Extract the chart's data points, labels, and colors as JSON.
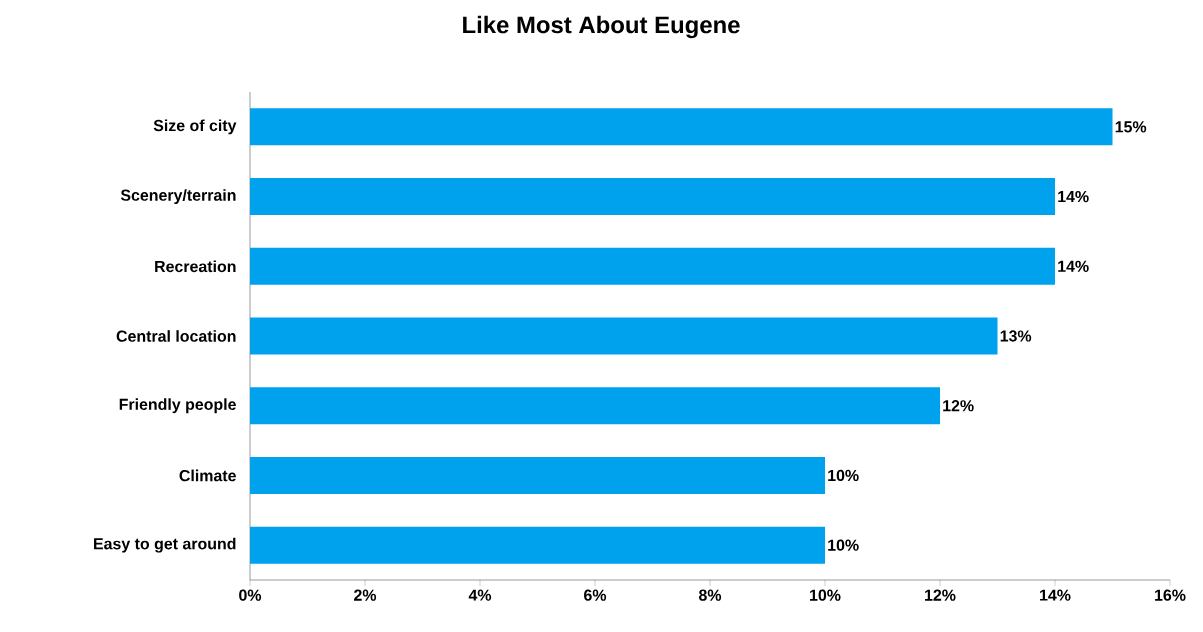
{
  "chart_data": {
    "type": "bar",
    "orientation": "horizontal",
    "title": "Like Most About Eugene",
    "categories": [
      "Size of city",
      "Scenery/terrain",
      "Recreation",
      "Central location",
      "Friendly people",
      "Climate",
      "Easy to get around"
    ],
    "values": [
      15,
      14,
      14,
      13,
      12,
      10,
      10
    ],
    "value_labels": [
      "15%",
      "14%",
      "14%",
      "13%",
      "12%",
      "10%",
      "10%"
    ],
    "color": "#00a2ee",
    "xlim": [
      0,
      16
    ],
    "xticks": [
      {
        "value": 0,
        "label": "0%"
      },
      {
        "value": 2,
        "label": "2%"
      },
      {
        "value": 4,
        "label": "4%"
      },
      {
        "value": 6,
        "label": "6%"
      },
      {
        "value": 8,
        "label": "8%"
      },
      {
        "value": 10,
        "label": "10%"
      },
      {
        "value": 12,
        "label": "12%"
      },
      {
        "value": 14,
        "label": "14%"
      },
      {
        "value": 16,
        "label": "16%"
      }
    ]
  }
}
